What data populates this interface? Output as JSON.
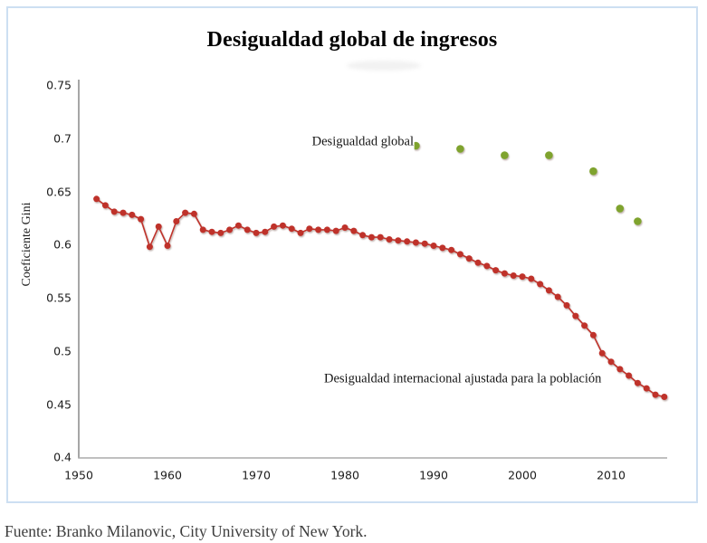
{
  "panel": {
    "title": "Desigualdad global de ingresos"
  },
  "source_note": "Fuente: Branko Milanovic, City University of New York.",
  "colors": {
    "international_series": "#bf322c",
    "global_series": "#7fa32f",
    "axis": "#8f8f8f",
    "panel_border": "#cddff2"
  },
  "chart_data": {
    "type": "line",
    "title": "Desigualdad global de ingresos",
    "xlabel": "",
    "ylabel": "Coeficiente Gini",
    "ylim": [
      0.4,
      0.75
    ],
    "xlim": [
      1950,
      2017
    ],
    "grid": false,
    "legend_position": "inline-annotations",
    "y_ticks": [
      "0.75",
      "0.7",
      "0.65",
      "0.6",
      "0.55",
      "0.5",
      "0.45",
      "0.4"
    ],
    "x_ticks": [
      "1950",
      "1960",
      "1970",
      "1980",
      "1990",
      "2000",
      "2010"
    ],
    "series": [
      {
        "name": "Desigualdad internacional ajustada para la población",
        "type": "line+markers",
        "color": "#bf322c",
        "x": [
          1952,
          1953,
          1954,
          1955,
          1956,
          1957,
          1958,
          1959,
          1960,
          1961,
          1962,
          1963,
          1964,
          1965,
          1966,
          1967,
          1968,
          1969,
          1970,
          1971,
          1972,
          1973,
          1974,
          1975,
          1976,
          1977,
          1978,
          1979,
          1980,
          1981,
          1982,
          1983,
          1984,
          1985,
          1986,
          1987,
          1988,
          1989,
          1990,
          1991,
          1992,
          1993,
          1994,
          1995,
          1996,
          1997,
          1998,
          1999,
          2000,
          2001,
          2002,
          2003,
          2004,
          2005,
          2006,
          2007,
          2008,
          2009,
          2010,
          2011,
          2012,
          2013,
          2014,
          2015,
          2016
        ],
        "values": [
          0.643,
          0.637,
          0.631,
          0.63,
          0.628,
          0.624,
          0.598,
          0.617,
          0.599,
          0.622,
          0.63,
          0.629,
          0.614,
          0.612,
          0.611,
          0.614,
          0.618,
          0.614,
          0.611,
          0.612,
          0.617,
          0.618,
          0.615,
          0.611,
          0.615,
          0.614,
          0.614,
          0.613,
          0.616,
          0.613,
          0.609,
          0.607,
          0.607,
          0.605,
          0.604,
          0.603,
          0.602,
          0.601,
          0.599,
          0.597,
          0.595,
          0.591,
          0.587,
          0.583,
          0.58,
          0.576,
          0.573,
          0.571,
          0.57,
          0.568,
          0.563,
          0.557,
          0.551,
          0.543,
          0.533,
          0.524,
          0.515,
          0.498,
          0.49,
          0.483,
          0.477,
          0.47,
          0.465,
          0.459,
          0.457
        ]
      },
      {
        "name": "Desigualdad global",
        "type": "markers",
        "color": "#7fa32f",
        "x": [
          1988,
          1993,
          1998,
          2003,
          2008,
          2011,
          2013
        ],
        "values": [
          0.693,
          0.69,
          0.684,
          0.684,
          0.669,
          0.634,
          0.622
        ]
      }
    ],
    "annotations": [
      {
        "text": "Desigualdad global",
        "anchor_year": 1987.7,
        "anchor_value": 0.696,
        "align": "right"
      },
      {
        "text": "Desigualdad internacional ajustada para la población",
        "anchor_year": 1977.7,
        "anchor_value": 0.473,
        "align": "left"
      }
    ]
  }
}
